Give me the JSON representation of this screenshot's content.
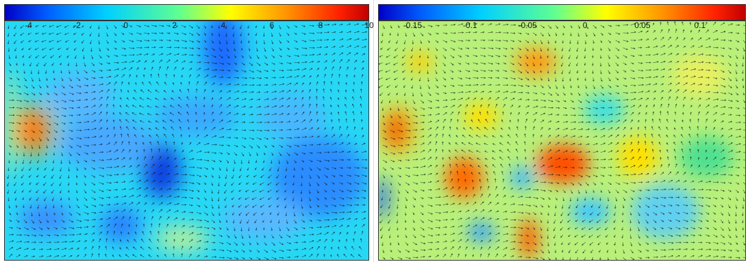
{
  "panels": [
    {
      "colorbar": {
        "min": -5,
        "max": 10,
        "tick_labels": [
          "-4",
          "-2",
          "0",
          "2",
          "4",
          "6",
          "8",
          "10"
        ],
        "tick_values": [
          -4,
          -2,
          0,
          2,
          4,
          6,
          8,
          10
        ],
        "colormap": "jet"
      }
    },
    {
      "colorbar": {
        "min": -0.18,
        "max": 0.14,
        "tick_labels": [
          "-0.15",
          "-0.1",
          "-0.05",
          "0",
          "0.05",
          "0.1"
        ],
        "tick_values": [
          -0.15,
          -0.1,
          -0.05,
          0,
          0.05,
          0.1
        ],
        "colormap": "jet"
      }
    }
  ],
  "colors": {
    "jet_stops": [
      "#0000c8",
      "#0060ff",
      "#00d0ff",
      "#60ff90",
      "#ffff00",
      "#ff9000",
      "#ff2000",
      "#a00000"
    ],
    "arrow": "#111111"
  }
}
